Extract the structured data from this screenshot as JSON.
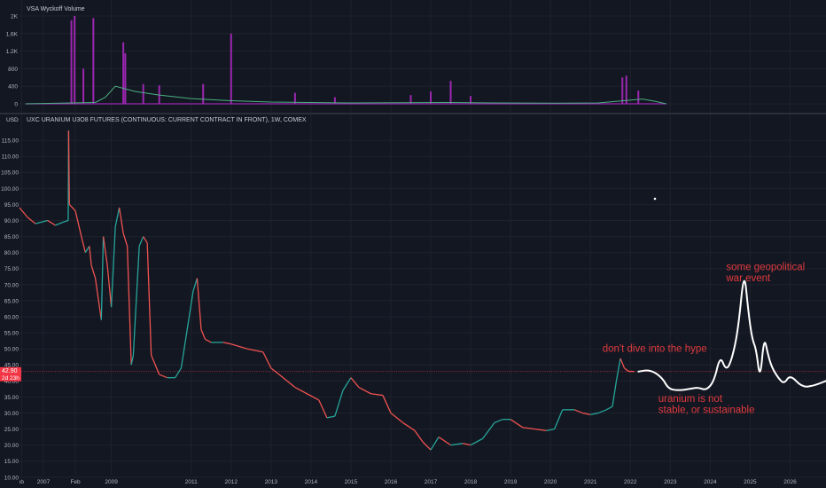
{
  "chart_data": [
    {
      "type": "bar",
      "title": "VSA Wyckoff Volume",
      "y_ticks": [
        0,
        400,
        800,
        1200,
        1600,
        2000
      ],
      "y_tick_labels": [
        "0",
        "400",
        "800",
        "1.2K",
        "1.6K",
        "2K"
      ],
      "ylim": [
        0,
        2100
      ],
      "bar_color": "#9c27b0",
      "ma_color": "#4caf82",
      "spikes": [
        {
          "x": 2008.0,
          "v": 1900
        },
        {
          "x": 2008.08,
          "v": 2000
        },
        {
          "x": 2008.3,
          "v": 800
        },
        {
          "x": 2008.55,
          "v": 1950
        },
        {
          "x": 2009.3,
          "v": 1400
        },
        {
          "x": 2009.35,
          "v": 1150
        },
        {
          "x": 2009.8,
          "v": 450
        },
        {
          "x": 2010.2,
          "v": 420
        },
        {
          "x": 2011.3,
          "v": 450
        },
        {
          "x": 2012.0,
          "v": 1600
        },
        {
          "x": 2013.6,
          "v": 250
        },
        {
          "x": 2014.6,
          "v": 150
        },
        {
          "x": 2016.5,
          "v": 200
        },
        {
          "x": 2017.0,
          "v": 280
        },
        {
          "x": 2017.5,
          "v": 520
        },
        {
          "x": 2018.0,
          "v": 180
        },
        {
          "x": 2021.8,
          "v": 600
        },
        {
          "x": 2021.9,
          "v": 640
        },
        {
          "x": 2022.2,
          "v": 300
        }
      ],
      "ma": [
        [
          2006.85,
          0
        ],
        [
          2008.6,
          30
        ],
        [
          2008.85,
          150
        ],
        [
          2009.1,
          400
        ],
        [
          2009.6,
          280
        ],
        [
          2010.2,
          200
        ],
        [
          2011.0,
          120
        ],
        [
          2012.0,
          70
        ],
        [
          2013.0,
          40
        ],
        [
          2015.0,
          20
        ],
        [
          2017.5,
          30
        ],
        [
          2018.5,
          20
        ],
        [
          2020.0,
          15
        ],
        [
          2021.2,
          20
        ],
        [
          2021.7,
          60
        ],
        [
          2022.3,
          110
        ],
        [
          2022.6,
          60
        ],
        [
          2022.9,
          0
        ]
      ]
    },
    {
      "type": "line",
      "title": "UXC URANIUM U3O8 FUTURES (CONTINUOUS: CURRENT CONTRACT IN FRONT), 1W, COMEX",
      "currency": "USD",
      "ylabel": "",
      "ylim": [
        8,
        120
      ],
      "y_ticks": [
        10,
        15,
        20,
        25,
        30,
        35,
        40,
        45,
        50,
        55,
        60,
        65,
        70,
        75,
        80,
        85,
        90,
        95,
        100,
        105,
        110,
        115
      ],
      "y_tick_labels": [
        "10.00",
        "15.00",
        "20.00",
        "25.00",
        "30.00",
        "35.00",
        "40.00",
        "45.00",
        "50.00",
        "55.00",
        "60.00",
        "65.00",
        "70.00",
        "75.00",
        "80.00",
        "85.00",
        "90.00",
        "95.00",
        "100.00",
        "105.00",
        "110.00",
        "115.00"
      ],
      "x_ticks": [
        {
          "x": 2006.75,
          "label": "ıb"
        },
        {
          "x": 2007.3,
          "label": "2007"
        },
        {
          "x": 2008.1,
          "label": "Feb"
        },
        {
          "x": 2009.0,
          "label": "2009"
        },
        {
          "x": 2011.0,
          "label": "2011"
        },
        {
          "x": 2012.0,
          "label": "2012"
        },
        {
          "x": 2013.0,
          "label": "2013"
        },
        {
          "x": 2014.0,
          "label": "2014"
        },
        {
          "x": 2015.0,
          "label": "2015"
        },
        {
          "x": 2016.0,
          "label": "2016"
        },
        {
          "x": 2017.0,
          "label": "2017"
        },
        {
          "x": 2018.0,
          "label": "2018"
        },
        {
          "x": 2019.0,
          "label": "2019"
        },
        {
          "x": 2020.0,
          "label": "2020"
        },
        {
          "x": 2021.0,
          "label": "2021"
        },
        {
          "x": 2022.0,
          "label": "2022"
        },
        {
          "x": 2023.0,
          "label": "2023"
        },
        {
          "x": 2024.0,
          "label": "2024"
        },
        {
          "x": 2025.0,
          "label": "2025"
        },
        {
          "x": 2026.0,
          "label": "2026"
        }
      ],
      "price": [
        [
          2006.7,
          94
        ],
        [
          2006.9,
          91
        ],
        [
          2007.1,
          89
        ],
        [
          2007.4,
          90
        ],
        [
          2007.6,
          88.5
        ],
        [
          2007.8,
          89.5
        ],
        [
          2007.92,
          90
        ],
        [
          2007.93,
          118
        ],
        [
          2007.95,
          95
        ],
        [
          2008.1,
          93
        ],
        [
          2008.25,
          85
        ],
        [
          2008.35,
          80
        ],
        [
          2008.45,
          82
        ],
        [
          2008.5,
          76
        ],
        [
          2008.6,
          72
        ],
        [
          2008.75,
          59
        ],
        [
          2008.8,
          85
        ],
        [
          2008.9,
          76
        ],
        [
          2009.0,
          63
        ],
        [
          2009.1,
          88
        ],
        [
          2009.2,
          94
        ],
        [
          2009.3,
          86
        ],
        [
          2009.4,
          82
        ],
        [
          2009.5,
          45
        ],
        [
          2009.55,
          48
        ],
        [
          2009.7,
          82
        ],
        [
          2009.8,
          85
        ],
        [
          2009.9,
          83
        ],
        [
          2010.0,
          48
        ],
        [
          2010.2,
          42
        ],
        [
          2010.4,
          41
        ],
        [
          2010.6,
          41
        ],
        [
          2010.75,
          44
        ],
        [
          2010.85,
          52
        ],
        [
          2010.95,
          60
        ],
        [
          2011.05,
          68
        ],
        [
          2011.15,
          72
        ],
        [
          2011.25,
          56
        ],
        [
          2011.35,
          53
        ],
        [
          2011.5,
          52
        ],
        [
          2011.8,
          52
        ],
        [
          2012.0,
          51.5
        ],
        [
          2012.4,
          50
        ],
        [
          2012.8,
          49
        ],
        [
          2013.0,
          44
        ],
        [
          2013.2,
          42
        ],
        [
          2013.6,
          38
        ],
        [
          2013.9,
          36
        ],
        [
          2014.2,
          34
        ],
        [
          2014.4,
          28.5
        ],
        [
          2014.6,
          29
        ],
        [
          2014.8,
          37
        ],
        [
          2015.0,
          41
        ],
        [
          2015.2,
          38
        ],
        [
          2015.5,
          36
        ],
        [
          2015.8,
          35.5
        ],
        [
          2016.0,
          30
        ],
        [
          2016.3,
          27
        ],
        [
          2016.6,
          24.5
        ],
        [
          2016.8,
          21
        ],
        [
          2017.0,
          18.5
        ],
        [
          2017.2,
          22.5
        ],
        [
          2017.5,
          20
        ],
        [
          2017.8,
          20.5
        ],
        [
          2018.0,
          20
        ],
        [
          2018.3,
          22
        ],
        [
          2018.6,
          27
        ],
        [
          2018.8,
          28
        ],
        [
          2019.0,
          28
        ],
        [
          2019.3,
          25.5
        ],
        [
          2019.6,
          25
        ],
        [
          2019.9,
          24.5
        ],
        [
          2020.1,
          25
        ],
        [
          2020.3,
          31
        ],
        [
          2020.6,
          31
        ],
        [
          2020.8,
          30
        ],
        [
          2021.0,
          29.5
        ],
        [
          2021.2,
          30
        ],
        [
          2021.4,
          31
        ],
        [
          2021.55,
          32
        ],
        [
          2021.65,
          40
        ],
        [
          2021.75,
          47
        ],
        [
          2021.85,
          44
        ],
        [
          2021.95,
          43
        ],
        [
          2022.1,
          42.9
        ]
      ],
      "last_price": 42.9,
      "last_price_label": "42.90",
      "last_time_label": "2d 23h",
      "annotations": [
        {
          "text": "don't dive into the hype",
          "x": 2021.3,
          "y": 49
        },
        {
          "text": "some geopolitical",
          "x": 2024.4,
          "y": 74.5
        },
        {
          "text": "war event",
          "x": 2024.4,
          "y": 71
        },
        {
          "text": "uranium is not",
          "x": 2022.7,
          "y": 33.5
        },
        {
          "text": "stable, or sustainable",
          "x": 2022.7,
          "y": 30
        }
      ],
      "projection": [
        [
          2022.2,
          42.9
        ],
        [
          2022.5,
          43.5
        ],
        [
          2022.8,
          41
        ],
        [
          2022.95,
          37.5
        ],
        [
          2023.2,
          37
        ],
        [
          2023.5,
          37.5
        ],
        [
          2023.7,
          38
        ],
        [
          2023.9,
          37
        ],
        [
          2024.1,
          40
        ],
        [
          2024.25,
          48
        ],
        [
          2024.4,
          43
        ],
        [
          2024.55,
          47
        ],
        [
          2024.7,
          56
        ],
        [
          2024.85,
          75
        ],
        [
          2024.95,
          62
        ],
        [
          2025.05,
          53
        ],
        [
          2025.15,
          50
        ],
        [
          2025.25,
          40
        ],
        [
          2025.35,
          54
        ],
        [
          2025.45,
          48
        ],
        [
          2025.55,
          44
        ],
        [
          2025.7,
          41
        ],
        [
          2025.85,
          39
        ],
        [
          2026.0,
          42
        ],
        [
          2026.3,
          38
        ],
        [
          2026.6,
          38.5
        ],
        [
          2026.9,
          40
        ]
      ]
    }
  ]
}
